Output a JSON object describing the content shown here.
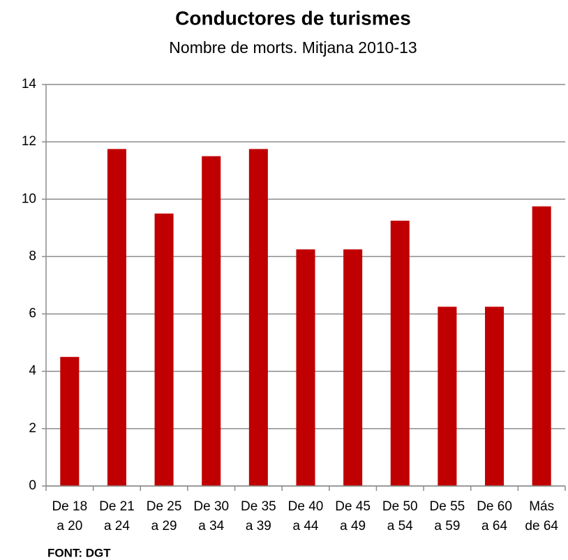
{
  "chart_data": {
    "type": "bar",
    "title": "Conductores de turismes",
    "subtitle": "Nombre de morts. Mitjana 2010-13",
    "categories": [
      [
        "De 18",
        "a 20"
      ],
      [
        "De 21",
        "a 24"
      ],
      [
        "De 25",
        "a 29"
      ],
      [
        "De 30",
        "a 34"
      ],
      [
        "De 35",
        "a 39"
      ],
      [
        "De 40",
        "a 44"
      ],
      [
        "De 45",
        "a 49"
      ],
      [
        "De 50",
        "a 54"
      ],
      [
        "De 55",
        "a 59"
      ],
      [
        "De 60",
        "a 64"
      ],
      [
        "Más",
        "de 64"
      ]
    ],
    "values": [
      4.5,
      11.75,
      9.5,
      11.5,
      11.75,
      8.25,
      8.25,
      9.25,
      6.25,
      6.25,
      9.75
    ],
    "color": "#c00000",
    "ylim": [
      0,
      14
    ],
    "yticks": [
      0,
      2,
      4,
      6,
      8,
      10,
      12,
      14
    ],
    "grid": true,
    "source": "FONT: DGT"
  }
}
